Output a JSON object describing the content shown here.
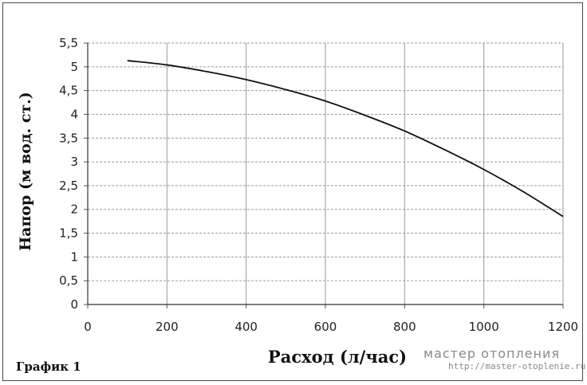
{
  "chart_data": {
    "type": "line",
    "xlabel": "Расход (л/час)",
    "ylabel": "Напор (м вод. ст.)",
    "xlim": [
      0,
      1200
    ],
    "ylim": [
      0,
      5.5
    ],
    "x_ticks": [
      "0",
      "200",
      "400",
      "600",
      "800",
      "1000",
      "1200"
    ],
    "y_ticks": [
      "0",
      "0,5",
      "1",
      "1,5",
      "2",
      "2,5",
      "3",
      "3,5",
      "4",
      "4,5",
      "5",
      "5,5"
    ],
    "grid": true,
    "series": [
      {
        "color": "#111111",
        "x": [
          100,
          200,
          300,
          400,
          500,
          600,
          700,
          800,
          900,
          1000,
          1100,
          1200
        ],
        "y": [
          5.13,
          5.04,
          4.9,
          4.73,
          4.52,
          4.28,
          3.98,
          3.65,
          3.26,
          2.84,
          2.37,
          1.85
        ]
      }
    ]
  },
  "caption": "График 1",
  "watermark": {
    "title": "мастер отопления",
    "url": "http://master-otoplenie.ru"
  }
}
